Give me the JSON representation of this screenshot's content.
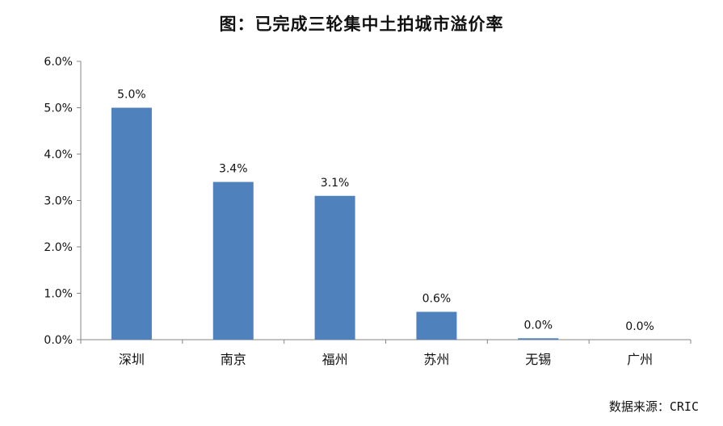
{
  "title": "图：已完成三轮集中土拍城市溢价率",
  "source": "数据来源：CRIC",
  "chart_data": {
    "type": "bar",
    "title": "图：已完成三轮集中土拍城市溢价率",
    "categories": [
      "深圳",
      "南京",
      "福州",
      "苏州",
      "无锡",
      "广州"
    ],
    "values": [
      5.0,
      3.4,
      3.1,
      0.6,
      0.03,
      0.0
    ],
    "data_labels": [
      "5.0%",
      "3.4%",
      "3.1%",
      "0.6%",
      "0.0%",
      "0.0%"
    ],
    "y_ticks": [
      "0.0%",
      "1.0%",
      "2.0%",
      "3.0%",
      "4.0%",
      "5.0%",
      "6.0%"
    ],
    "ylim": [
      0,
      6
    ],
    "ytick_step": 1,
    "xlabel": "",
    "ylabel": "",
    "grid": false,
    "legend": "none",
    "bar_color": "#4f81bd"
  }
}
